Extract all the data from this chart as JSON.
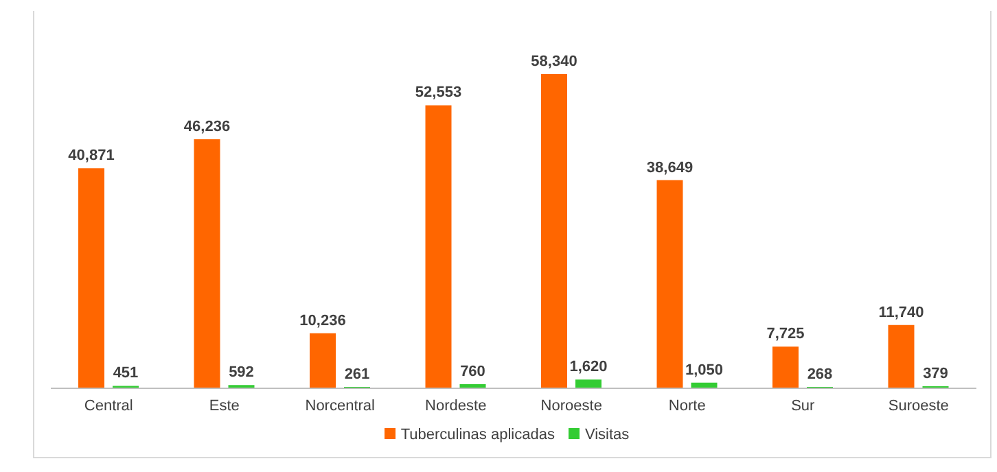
{
  "chart_data": {
    "type": "bar",
    "categories": [
      "Central",
      "Este",
      "Norcentral",
      "Nordeste",
      "Noroeste",
      "Norte",
      "Sur",
      "Suroeste"
    ],
    "series": [
      {
        "name": "Tuberculinas aplicadas",
        "color": "#ff6600",
        "values": [
          40871,
          46236,
          10236,
          52553,
          58340,
          38649,
          7725,
          11740
        ],
        "value_labels": [
          "40,871",
          "46,236",
          "10,236",
          "52,553",
          "58,340",
          "38,649",
          "7,725",
          "11,740"
        ]
      },
      {
        "name": "Visitas",
        "color": "#33cc33",
        "values": [
          451,
          592,
          261,
          760,
          1620,
          1050,
          268,
          379
        ],
        "value_labels": [
          "451",
          "592",
          "261",
          "760",
          "1,620",
          "1,050",
          "268",
          "379"
        ]
      }
    ],
    "legend": "bottom"
  }
}
